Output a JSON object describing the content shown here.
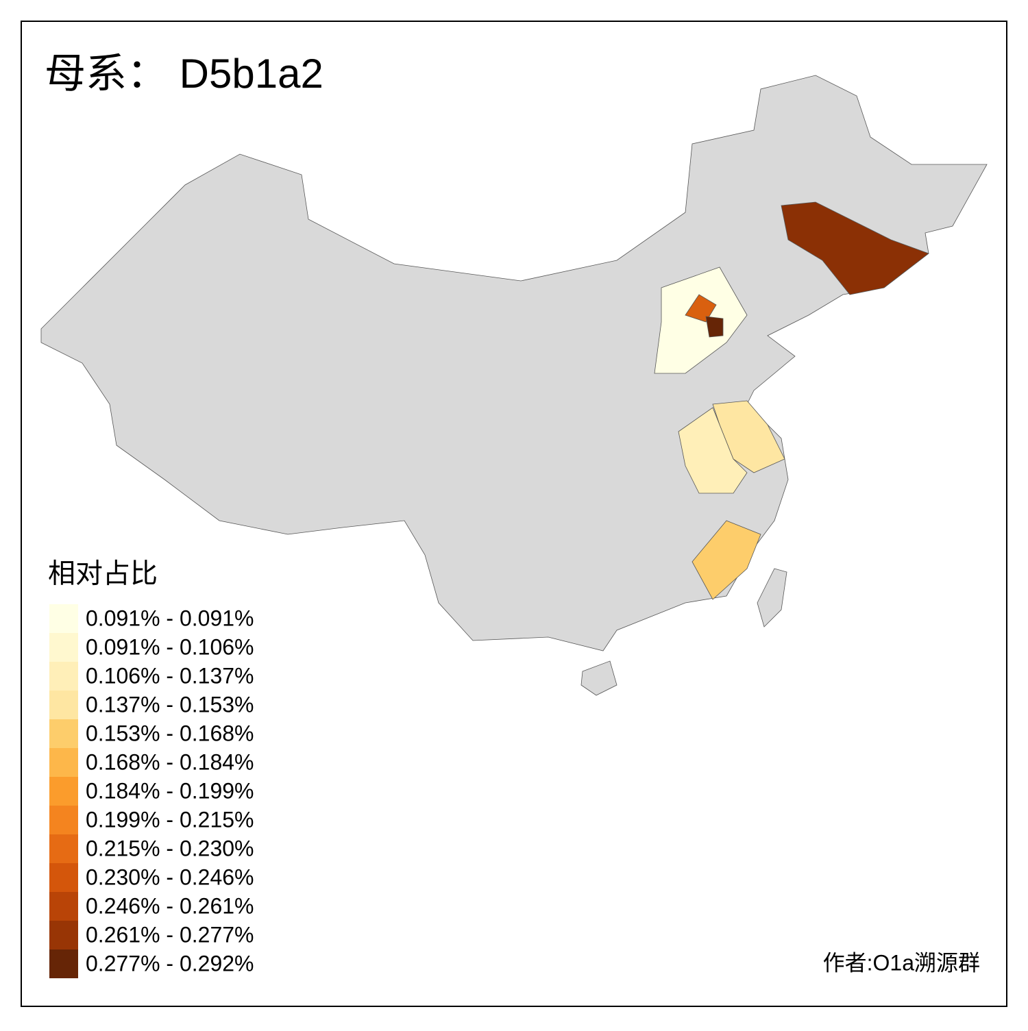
{
  "title": "母系： D5b1a2",
  "legend": {
    "title": "相对占比",
    "items": [
      {
        "label": "0.091% - 0.091%",
        "color": "#ffffe5"
      },
      {
        "label": "0.091% - 0.106%",
        "color": "#fff8cf"
      },
      {
        "label": "0.106% - 0.137%",
        "color": "#ffefb8"
      },
      {
        "label": "0.137% - 0.153%",
        "color": "#fee6a2"
      },
      {
        "label": "0.153% - 0.168%",
        "color": "#fdcd6b"
      },
      {
        "label": "0.168% - 0.184%",
        "color": "#fdb74a"
      },
      {
        "label": "0.184% - 0.199%",
        "color": "#fb9c2c"
      },
      {
        "label": "0.199% - 0.215%",
        "color": "#f4841f"
      },
      {
        "label": "0.215% - 0.230%",
        "color": "#e66b14"
      },
      {
        "label": "0.230% - 0.246%",
        "color": "#d4560b"
      },
      {
        "label": "0.246% - 0.261%",
        "color": "#b94407"
      },
      {
        "label": "0.261% - 0.277%",
        "color": "#983505"
      },
      {
        "label": "0.277% - 0.292%",
        "color": "#662506"
      }
    ]
  },
  "credit": "作者:O1a溯源群"
}
